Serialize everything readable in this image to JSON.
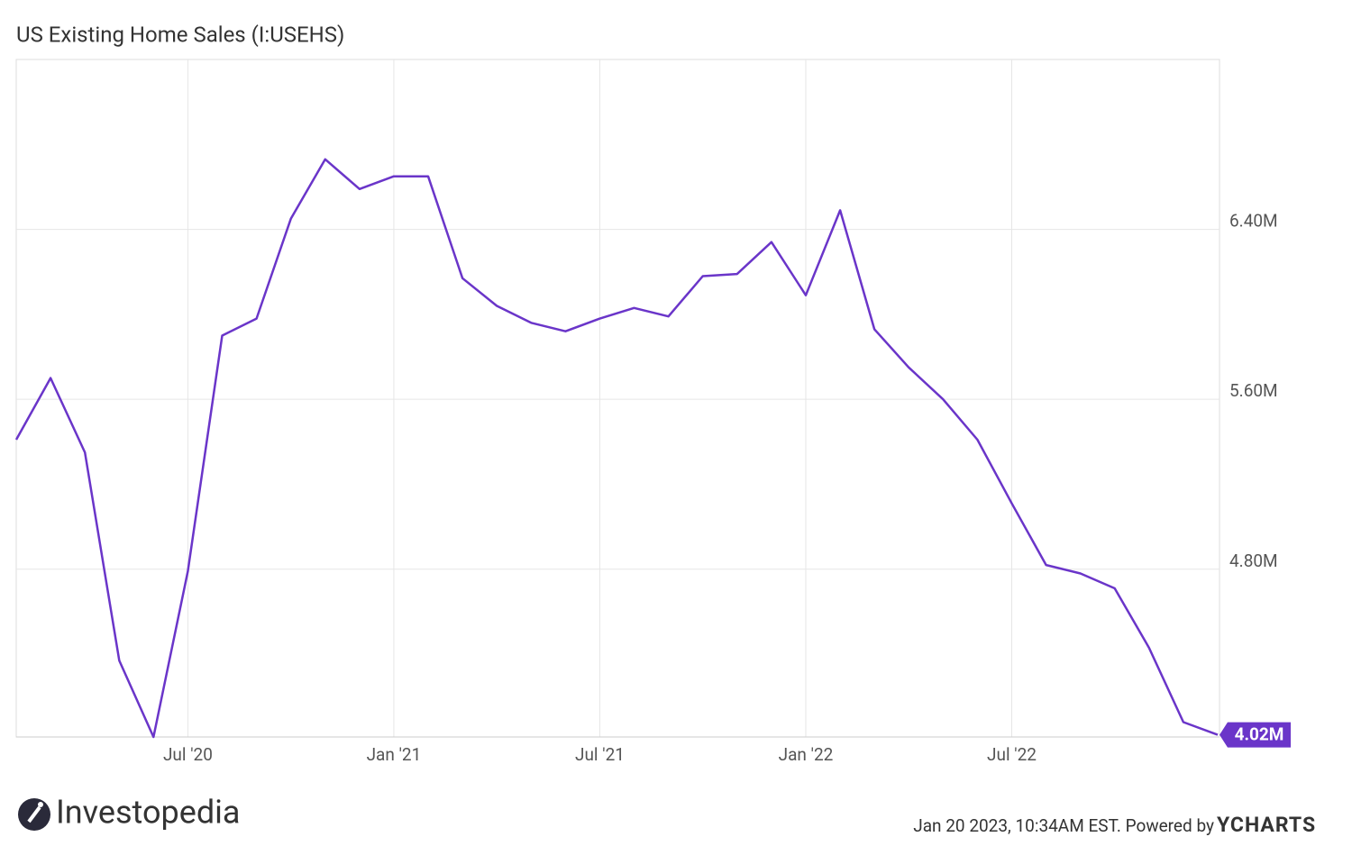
{
  "chart_data": {
    "type": "line",
    "title": "US Existing Home Sales (I:USEHS)",
    "x": [
      "2020-02",
      "2020-03",
      "2020-04",
      "2020-05",
      "2020-06",
      "2020-07",
      "2020-08",
      "2020-09",
      "2020-10",
      "2020-11",
      "2020-12",
      "2021-01",
      "2021-02",
      "2021-03",
      "2021-04",
      "2021-05",
      "2021-06",
      "2021-07",
      "2021-08",
      "2021-09",
      "2021-10",
      "2021-11",
      "2021-12",
      "2022-01",
      "2022-02",
      "2022-03",
      "2022-04",
      "2022-05",
      "2022-06",
      "2022-07",
      "2022-08",
      "2022-09",
      "2022-10",
      "2022-11",
      "2022-12",
      "2023-01"
    ],
    "series": [
      {
        "name": "US Existing Home Sales",
        "color": "#6a35c9",
        "values": [
          5.41,
          5.7,
          5.35,
          4.37,
          4.01,
          4.79,
          5.9,
          5.98,
          6.45,
          6.73,
          6.59,
          6.65,
          6.65,
          6.17,
          6.04,
          5.96,
          5.92,
          5.98,
          6.03,
          5.99,
          6.18,
          6.19,
          6.34,
          6.09,
          6.49,
          5.93,
          5.75,
          5.6,
          5.41,
          5.11,
          4.82,
          4.78,
          4.71,
          4.43,
          4.08,
          4.02
        ],
        "value_labels": [
          null,
          null,
          null,
          null,
          null,
          null,
          null,
          null,
          null,
          null,
          null,
          null,
          null,
          null,
          null,
          null,
          null,
          null,
          null,
          null,
          null,
          null,
          null,
          null,
          null,
          null,
          null,
          null,
          null,
          null,
          null,
          null,
          null,
          null,
          null,
          "4.02M"
        ]
      }
    ],
    "xlim": [
      "2020-02",
      "2023-01"
    ],
    "xticks": [
      {
        "value": "2020-07",
        "label": "Jul '20"
      },
      {
        "value": "2021-01",
        "label": "Jan '21"
      },
      {
        "value": "2021-07",
        "label": "Jul '21"
      },
      {
        "value": "2022-01",
        "label": "Jan '22"
      },
      {
        "value": "2022-07",
        "label": "Jul '22"
      }
    ],
    "ylim": [
      4.01,
      7.2
    ],
    "yticks": [
      {
        "value": 4.8,
        "label": "4.80M"
      },
      {
        "value": 5.6,
        "label": "5.60M"
      },
      {
        "value": 6.4,
        "label": "6.40M"
      }
    ],
    "grid": true
  },
  "footer": {
    "brand": "Investopedia",
    "timestamp": "Jan 20 2023, 10:34AM EST. Powered by",
    "powered_by": "YCHARTS"
  }
}
